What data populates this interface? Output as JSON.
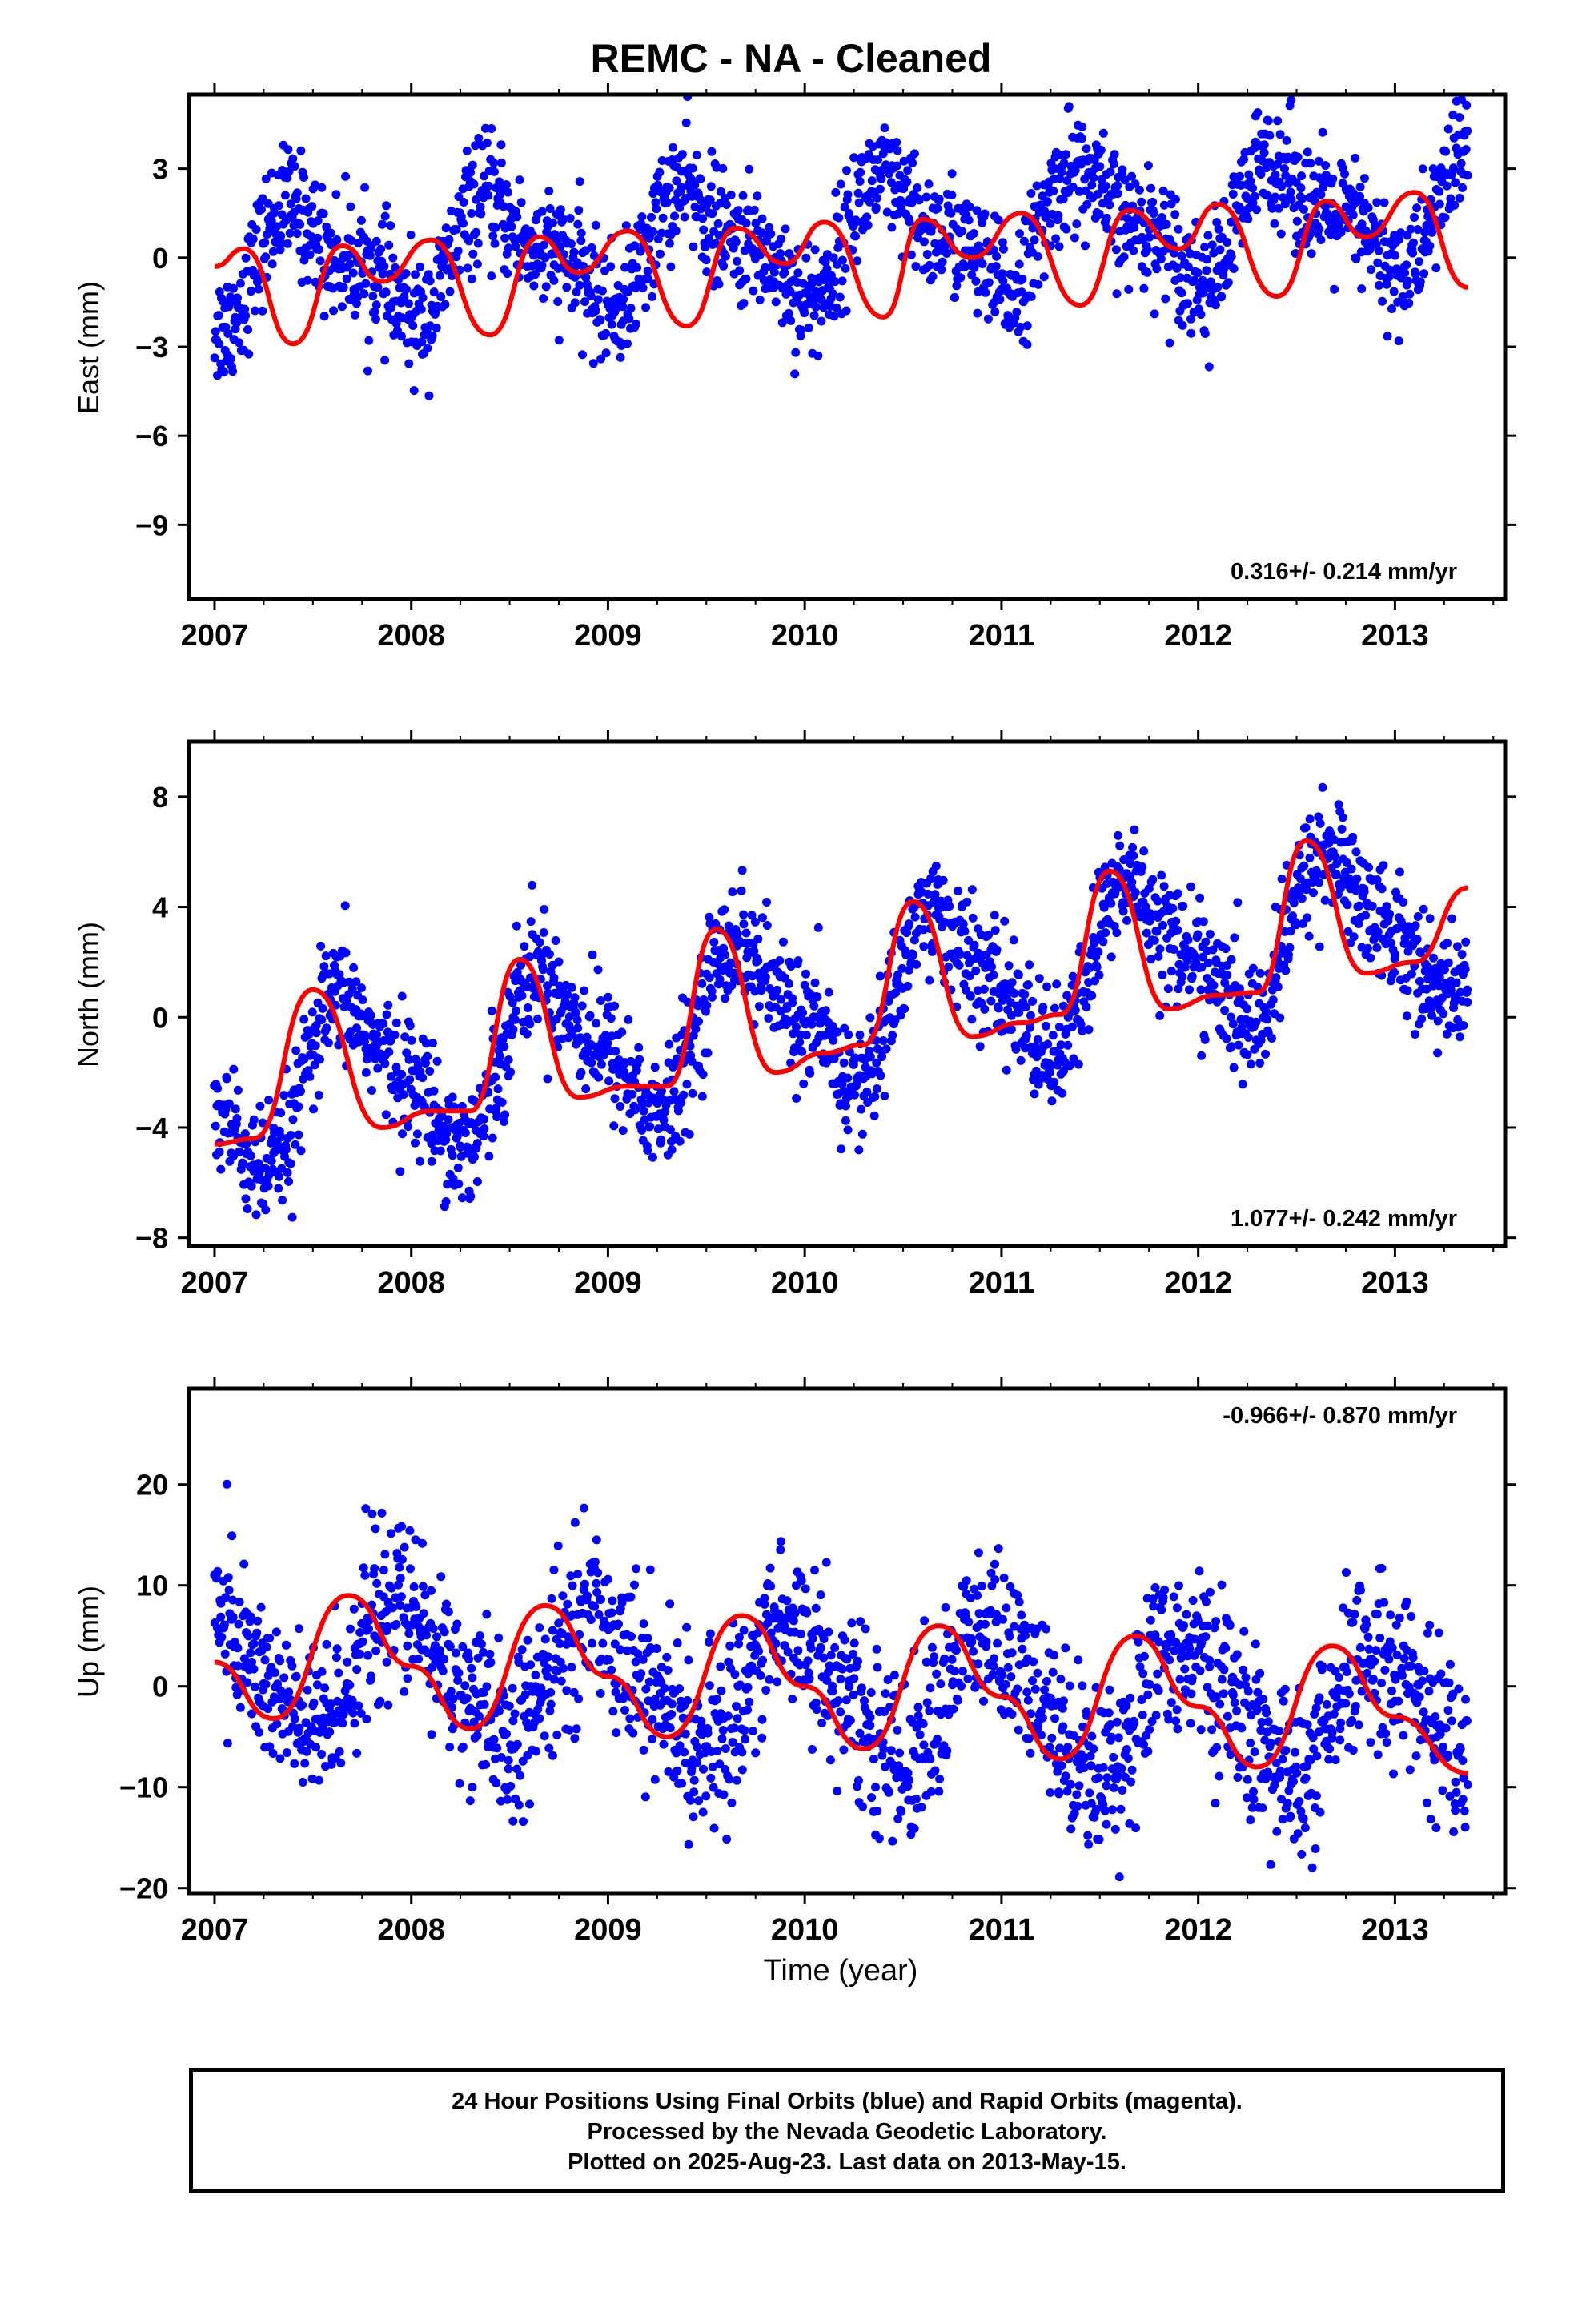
{
  "title": "REMC  - NA - Cleaned",
  "xlabel": "Time (year)",
  "colors": {
    "points": "#0000ff",
    "fit": "#ff0000",
    "axes": "#000000"
  },
  "footer": {
    "line1": "24 Hour Positions Using Final Orbits (blue) and Rapid Orbits (magenta).",
    "line2": "Processed by the Nevada Geodetic Laboratory.",
    "line3": "Plotted on 2025-Aug-23. Last data on 2013-May-15."
  },
  "chart_data": [
    {
      "type": "scatter",
      "ylabel": "East (mm)",
      "rate_label": "0.316+/- 0.214 mm/yr",
      "xlim": [
        2006.87,
        2013.56
      ],
      "ylim": [
        -11.5,
        5.5
      ],
      "xticks": [
        2007,
        2008,
        2009,
        2010,
        2011,
        2012,
        2013
      ],
      "xticklabels": [
        "2007",
        "2008",
        "2009",
        "2010",
        "2011",
        "2012",
        "2013"
      ],
      "yticks": [
        -9,
        -6,
        -3,
        0,
        3
      ],
      "yticklabels": [
        "−9",
        "−6",
        "−3",
        "0",
        "3"
      ],
      "series": [
        {
          "kind": "points",
          "x_start": 2007.0,
          "x_end": 2013.37,
          "annual_amp": 1.6,
          "semi_amp": 0.7,
          "phase": 0.2,
          "trend": 0.316,
          "offset": -0.4,
          "scatter": 1.0
        },
        {
          "kind": "fit",
          "x": [
            2007.0,
            2007.15,
            2007.4,
            2007.65,
            2007.85,
            2008.1,
            2008.4,
            2008.65,
            2008.85,
            2009.1,
            2009.4,
            2009.65,
            2009.9,
            2010.1,
            2010.4,
            2010.6,
            2010.85,
            2011.1,
            2011.4,
            2011.65,
            2011.9,
            2012.1,
            2012.4,
            2012.65,
            2012.85,
            2013.1,
            2013.37
          ],
          "y": [
            -0.3,
            0.3,
            -2.9,
            0.4,
            -0.8,
            0.6,
            -2.6,
            0.7,
            -0.5,
            0.9,
            -2.3,
            1.0,
            -0.2,
            1.2,
            -2.0,
            1.3,
            0.0,
            1.5,
            -1.6,
            1.6,
            0.3,
            1.8,
            -1.3,
            1.9,
            0.7,
            2.2,
            -1.0
          ]
        }
      ]
    },
    {
      "type": "scatter",
      "ylabel": "North (mm)",
      "rate_label": "1.077+/- 0.242 mm/yr",
      "xlim": [
        2006.87,
        2013.56
      ],
      "ylim": [
        -8.3,
        10.0
      ],
      "xticks": [
        2007,
        2008,
        2009,
        2010,
        2011,
        2012,
        2013
      ],
      "xticklabels": [
        "2007",
        "2008",
        "2009",
        "2010",
        "2011",
        "2012",
        "2013"
      ],
      "yticks": [
        -8,
        -4,
        0,
        4,
        8
      ],
      "yticklabels": [
        "−8",
        "−4",
        "0",
        "4",
        "8"
      ],
      "series": [
        {
          "kind": "points",
          "x_start": 2007.0,
          "x_end": 2013.37,
          "annual_amp": 2.6,
          "semi_amp": 0.8,
          "phase": 0.45,
          "trend": 1.077,
          "offset": -3.0,
          "scatter": 1.1
        },
        {
          "kind": "fit",
          "x": [
            2007.0,
            2007.2,
            2007.5,
            2007.85,
            2008.1,
            2008.3,
            2008.55,
            2008.85,
            2009.1,
            2009.3,
            2009.55,
            2009.85,
            2010.1,
            2010.3,
            2010.55,
            2010.85,
            2011.1,
            2011.3,
            2011.55,
            2011.85,
            2012.1,
            2012.3,
            2012.55,
            2012.85,
            2013.1,
            2013.37
          ],
          "y": [
            -4.6,
            -4.4,
            1.0,
            -4.0,
            -3.4,
            -3.4,
            2.1,
            -2.9,
            -2.5,
            -2.5,
            3.2,
            -2.0,
            -1.3,
            -1.0,
            4.2,
            -0.7,
            -0.2,
            0.1,
            5.3,
            0.3,
            0.8,
            0.9,
            6.4,
            1.6,
            2.0,
            4.7
          ]
        }
      ]
    },
    {
      "type": "scatter",
      "ylabel": "Up (mm)",
      "rate_label": "-0.966+/- 0.870 mm/yr",
      "xlim": [
        2006.87,
        2013.56
      ],
      "ylim": [
        -20.5,
        29.5
      ],
      "xticks": [
        2007,
        2008,
        2009,
        2010,
        2011,
        2012,
        2013
      ],
      "xticklabels": [
        "2007",
        "2008",
        "2009",
        "2010",
        "2011",
        "2012",
        "2013"
      ],
      "yticks": [
        -20,
        -10,
        0,
        10,
        20
      ],
      "yticklabels": [
        "−20",
        "−10",
        "0",
        "10",
        "20"
      ],
      "series": [
        {
          "kind": "points",
          "x_start": 2007.0,
          "x_end": 2013.37,
          "annual_amp": 6.2,
          "semi_amp": 1.0,
          "phase": 0.7,
          "trend": -0.966,
          "offset": 2.5,
          "scatter": 4.2
        },
        {
          "kind": "fit",
          "x": [
            2007.0,
            2007.3,
            2007.68,
            2008.0,
            2008.3,
            2008.68,
            2009.0,
            2009.3,
            2009.68,
            2010.0,
            2010.3,
            2010.68,
            2011.0,
            2011.3,
            2011.68,
            2012.0,
            2012.3,
            2012.68,
            2013.0,
            2013.37
          ],
          "y": [
            2.4,
            -3.2,
            9.0,
            2.0,
            -4.2,
            8.0,
            1.0,
            -5.0,
            7.0,
            0.0,
            -6.2,
            6.0,
            -1.0,
            -7.2,
            5.0,
            -2.0,
            -8.0,
            4.0,
            -3.0,
            -8.6
          ]
        }
      ]
    }
  ]
}
